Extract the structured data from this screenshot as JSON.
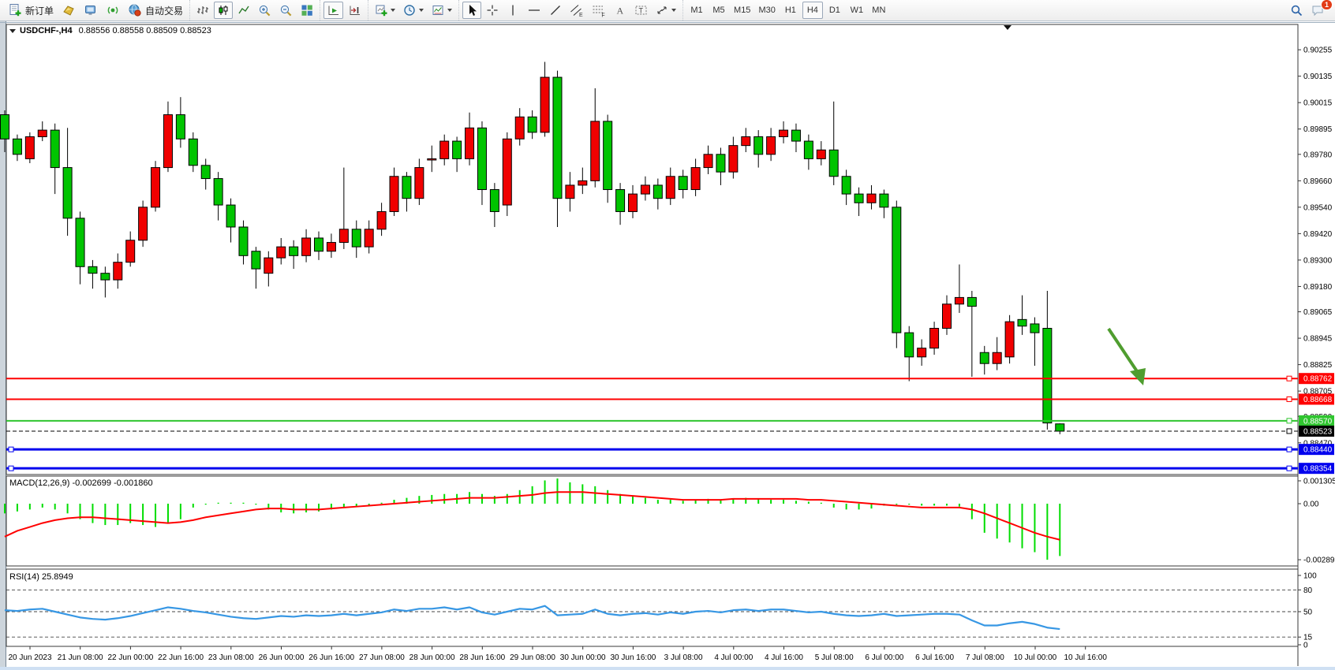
{
  "toolbar": {
    "new_order_label": "新订单",
    "autotrade_label": "自动交易",
    "timeframes": [
      "M1",
      "M5",
      "M15",
      "M30",
      "H1",
      "H4",
      "D1",
      "W1",
      "MN"
    ],
    "active_timeframe": "H4",
    "notification_count": "1"
  },
  "header": {
    "symbol_period": "USDCHF-,H4",
    "ohlc": "0.88556 0.88558 0.88509 0.88523"
  },
  "macd_panel": {
    "label": "MACD(12,26,9)",
    "values": "-0.002699 -0.001860"
  },
  "rsi_panel": {
    "label": "RSI(14)",
    "value": "25.8949"
  },
  "colors": {
    "bull": "#f00000",
    "bear": "#00c400",
    "wick": "#000000",
    "macd_hist": "#00dd00",
    "macd_signal": "#ff0000",
    "rsi_line": "#3797e4",
    "level_red": "#ff0000",
    "level_green": "#2fc52f",
    "level_blue": "#0000ee",
    "price_line": "#000000",
    "arrow": "#4f9d2f"
  },
  "chart_data": {
    "type": "candlestick",
    "symbol": "USDCHF-",
    "period": "H4",
    "price_axis_ticks": [
      "0.90255",
      "0.90135",
      "0.90015",
      "0.89895",
      "0.89780",
      "0.89660",
      "0.89540",
      "0.89420",
      "0.89300",
      "0.89180",
      "0.89065",
      "0.88945",
      "0.88825",
      "0.88705",
      "0.88590",
      "0.88470"
    ],
    "levels": [
      {
        "label": "0.88762",
        "price": 0.88762,
        "color": "#ff0000",
        "style": "solid",
        "w": 2,
        "left_handle": false
      },
      {
        "label": "0.88668",
        "price": 0.88668,
        "color": "#ff0000",
        "style": "solid",
        "w": 2,
        "left_handle": false
      },
      {
        "label": "0.88570",
        "price": 0.8857,
        "color": "#2fc52f",
        "style": "solid",
        "w": 2,
        "left_handle": false
      },
      {
        "label": "0.88523",
        "price": 0.88523,
        "color": "#000000",
        "style": "dashed",
        "w": 1,
        "left_handle": false
      },
      {
        "label": "0.88440",
        "price": 0.8844,
        "color": "#0000ee",
        "style": "solid",
        "w": 3,
        "left_handle": true
      },
      {
        "label": "0.88354",
        "price": 0.88354,
        "color": "#0000ee",
        "style": "solid",
        "w": 3,
        "left_handle": true
      }
    ],
    "candles": [
      [
        0.8996,
        0.8998,
        0.8979,
        0.8985
      ],
      [
        0.8985,
        0.8987,
        0.8975,
        0.8978
      ],
      [
        0.8976,
        0.8988,
        0.8974,
        0.8986
      ],
      [
        0.8986,
        0.8993,
        0.8984,
        0.8989
      ],
      [
        0.8989,
        0.8992,
        0.896,
        0.8972
      ],
      [
        0.8972,
        0.899,
        0.8941,
        0.8949
      ],
      [
        0.8949,
        0.8952,
        0.8919,
        0.8927
      ],
      [
        0.8927,
        0.893,
        0.8917,
        0.8924
      ],
      [
        0.8924,
        0.8927,
        0.8913,
        0.8921
      ],
      [
        0.8921,
        0.8933,
        0.8917,
        0.8929
      ],
      [
        0.8929,
        0.8943,
        0.8927,
        0.8939
      ],
      [
        0.8939,
        0.8957,
        0.8936,
        0.8954
      ],
      [
        0.8954,
        0.8975,
        0.8952,
        0.8972
      ],
      [
        0.8972,
        0.9002,
        0.897,
        0.8996
      ],
      [
        0.8996,
        0.9004,
        0.8981,
        0.8985
      ],
      [
        0.8985,
        0.8988,
        0.897,
        0.8973
      ],
      [
        0.8973,
        0.8976,
        0.8962,
        0.8967
      ],
      [
        0.8967,
        0.897,
        0.8948,
        0.8955
      ],
      [
        0.8955,
        0.8958,
        0.8938,
        0.8945
      ],
      [
        0.8945,
        0.8948,
        0.8928,
        0.8932
      ],
      [
        0.8934,
        0.8936,
        0.8917,
        0.8926
      ],
      [
        0.8924,
        0.8934,
        0.8918,
        0.8931
      ],
      [
        0.8931,
        0.894,
        0.8928,
        0.8936
      ],
      [
        0.8936,
        0.8939,
        0.8926,
        0.8932
      ],
      [
        0.8932,
        0.8944,
        0.8929,
        0.894
      ],
      [
        0.894,
        0.8943,
        0.893,
        0.8934
      ],
      [
        0.8934,
        0.8942,
        0.8931,
        0.8938
      ],
      [
        0.8938,
        0.8972,
        0.8935,
        0.8944
      ],
      [
        0.8944,
        0.8948,
        0.8931,
        0.8936
      ],
      [
        0.8936,
        0.8948,
        0.8933,
        0.8944
      ],
      [
        0.8944,
        0.8956,
        0.8941,
        0.8952
      ],
      [
        0.8952,
        0.8972,
        0.895,
        0.8968
      ],
      [
        0.8968,
        0.897,
        0.8952,
        0.8958
      ],
      [
        0.8958,
        0.8976,
        0.8955,
        0.8972
      ],
      [
        0.8976,
        0.8982,
        0.897,
        0.8976
      ],
      [
        0.8976,
        0.8987,
        0.8973,
        0.8984
      ],
      [
        0.8984,
        0.8986,
        0.897,
        0.8976
      ],
      [
        0.8976,
        0.8997,
        0.8973,
        0.899
      ],
      [
        0.899,
        0.8993,
        0.8955,
        0.8962
      ],
      [
        0.8962,
        0.8965,
        0.8945,
        0.8952
      ],
      [
        0.8955,
        0.8988,
        0.895,
        0.8985
      ],
      [
        0.8985,
        0.8999,
        0.8982,
        0.8995
      ],
      [
        0.8995,
        0.8998,
        0.8985,
        0.8988
      ],
      [
        0.8988,
        0.902,
        0.8986,
        0.9013
      ],
      [
        0.9013,
        0.9016,
        0.8945,
        0.8958
      ],
      [
        0.8958,
        0.897,
        0.8952,
        0.8964
      ],
      [
        0.8964,
        0.8972,
        0.896,
        0.8966
      ],
      [
        0.8966,
        0.9008,
        0.8963,
        0.8993
      ],
      [
        0.8993,
        0.8996,
        0.8956,
        0.8962
      ],
      [
        0.8962,
        0.8965,
        0.8946,
        0.8952
      ],
      [
        0.8952,
        0.8964,
        0.8949,
        0.896
      ],
      [
        0.896,
        0.8968,
        0.8957,
        0.8964
      ],
      [
        0.8964,
        0.8967,
        0.8953,
        0.8958
      ],
      [
        0.8958,
        0.8972,
        0.8955,
        0.8968
      ],
      [
        0.8968,
        0.8971,
        0.8958,
        0.8962
      ],
      [
        0.8962,
        0.8976,
        0.8959,
        0.8972
      ],
      [
        0.8972,
        0.8982,
        0.8969,
        0.8978
      ],
      [
        0.8978,
        0.8981,
        0.8964,
        0.897
      ],
      [
        0.897,
        0.8986,
        0.8967,
        0.8982
      ],
      [
        0.8982,
        0.899,
        0.8979,
        0.8986
      ],
      [
        0.8986,
        0.8989,
        0.8972,
        0.8978
      ],
      [
        0.8978,
        0.899,
        0.8975,
        0.8986
      ],
      [
        0.8986,
        0.8993,
        0.8983,
        0.8989
      ],
      [
        0.8989,
        0.8992,
        0.8979,
        0.8984
      ],
      [
        0.8984,
        0.8987,
        0.8971,
        0.8976
      ],
      [
        0.8976,
        0.8984,
        0.8973,
        0.898
      ],
      [
        0.898,
        0.9002,
        0.8964,
        0.8968
      ],
      [
        0.8968,
        0.8971,
        0.8955,
        0.896
      ],
      [
        0.896,
        0.8963,
        0.895,
        0.8956
      ],
      [
        0.8956,
        0.8964,
        0.8953,
        0.896
      ],
      [
        0.896,
        0.8962,
        0.8949,
        0.8954
      ],
      [
        0.8954,
        0.8957,
        0.889,
        0.8897
      ],
      [
        0.8897,
        0.89,
        0.8875,
        0.8886
      ],
      [
        0.8886,
        0.8894,
        0.8882,
        0.889
      ],
      [
        0.889,
        0.8902,
        0.8887,
        0.8899
      ],
      [
        0.8899,
        0.8914,
        0.8896,
        0.891
      ],
      [
        0.891,
        0.8928,
        0.8906,
        0.8913
      ],
      [
        0.8913,
        0.8916,
        0.8877,
        0.8909
      ],
      [
        0.8888,
        0.8891,
        0.8878,
        0.8883
      ],
      [
        0.8883,
        0.8895,
        0.888,
        0.8888
      ],
      [
        0.8886,
        0.8905,
        0.8883,
        0.8902
      ],
      [
        0.8903,
        0.8914,
        0.8896,
        0.89
      ],
      [
        0.8901,
        0.8904,
        0.8882,
        0.8897
      ],
      [
        0.8899,
        0.8916,
        0.8853,
        0.8856
      ],
      [
        0.88556,
        0.88558,
        0.88509,
        0.88523
      ]
    ],
    "macd": {
      "axis_labels": [
        "0.001305",
        "0.00",
        "-0.00289"
      ],
      "hist_1e4": [
        -5,
        -4,
        -3,
        -2,
        -3,
        -5,
        -8,
        -10,
        -11,
        -11,
        -10,
        -11,
        -12,
        -10,
        -8,
        -2,
        -0.5,
        0.5,
        0.5,
        0.5,
        -0.5,
        -3,
        -4.5,
        -5,
        -4.5,
        -4,
        -3,
        -2,
        -1.5,
        -1,
        0.5,
        2,
        3,
        4,
        4.5,
        5,
        5,
        6,
        5,
        4,
        5,
        7,
        9,
        12,
        13,
        11,
        10,
        9,
        7,
        5,
        4,
        3,
        2,
        2,
        1.5,
        2,
        2.5,
        2,
        2.5,
        3,
        2.5,
        2,
        2,
        1.5,
        1,
        0.5,
        -2,
        -3,
        -3,
        -2.5,
        -1,
        -0.5,
        -0.5,
        -1,
        -1,
        -1,
        -1.5,
        -8,
        -15,
        -18,
        -20,
        -23,
        -25,
        -28.9,
        -27
      ],
      "signal_1e4": [
        -17,
        -14,
        -12,
        -10,
        -8.5,
        -7.5,
        -7,
        -7,
        -7.5,
        -8,
        -8.5,
        -9,
        -9.5,
        -10,
        -9.5,
        -8.5,
        -7,
        -6,
        -5,
        -4,
        -3,
        -2.5,
        -2.5,
        -3,
        -3,
        -3,
        -2.5,
        -2,
        -1.5,
        -1,
        -0.5,
        0,
        0.5,
        1,
        1.5,
        2,
        2.5,
        3,
        3,
        3,
        3.5,
        4,
        4.5,
        5.5,
        6,
        6,
        6,
        5.5,
        5,
        4.5,
        4,
        3.5,
        3,
        2.5,
        2,
        2,
        2,
        2,
        2.5,
        2.5,
        2.5,
        2.5,
        2.5,
        2.5,
        2,
        2,
        1.5,
        1,
        0.5,
        0,
        -0.5,
        -1,
        -1.5,
        -2,
        -2,
        -2,
        -2,
        -3,
        -5,
        -7.5,
        -10,
        -12.5,
        -15,
        -17,
        -18.6
      ]
    },
    "rsi": {
      "axis_labels": [
        "100",
        "80",
        "50",
        "15",
        "0"
      ],
      "level_lines": [
        80,
        50,
        15
      ],
      "values": [
        52,
        51,
        53,
        54,
        50,
        46,
        42,
        40,
        39,
        41,
        44,
        48,
        52,
        56,
        54,
        51,
        49,
        46,
        43,
        41,
        40,
        42,
        44,
        43,
        45,
        44,
        45,
        47,
        45,
        47,
        49,
        53,
        51,
        54,
        54,
        56,
        53,
        56,
        49,
        46,
        50,
        54,
        53,
        58,
        45,
        46,
        47,
        53,
        47,
        45,
        47,
        48,
        46,
        49,
        47,
        50,
        51,
        49,
        52,
        53,
        51,
        53,
        53,
        51,
        49,
        50,
        47,
        45,
        44,
        45,
        47,
        44,
        45,
        46,
        47,
        47,
        46,
        38,
        31,
        31,
        34,
        36,
        33,
        28,
        26
      ]
    },
    "time_labels": [
      "20 Jun 2023",
      "21 Jun 08:00",
      "22 Jun 00:00",
      "22 Jun 16:00",
      "23 Jun 08:00",
      "26 Jun 00:00",
      "26 Jun 16:00",
      "27 Jun 08:00",
      "28 Jun 00:00",
      "28 Jun 16:00",
      "29 Jun 08:00",
      "30 Jun 00:00",
      "30 Jun 16:00",
      "3 Jul 08:00",
      "4 Jul 00:00",
      "4 Jul 16:00",
      "5 Jul 08:00",
      "6 Jul 00:00",
      "6 Jul 16:00",
      "7 Jul 08:00",
      "10 Jul 00:00",
      "10 Jul 16:00"
    ],
    "annotations": [
      {
        "type": "arrow",
        "direction": "down-right"
      }
    ]
  }
}
